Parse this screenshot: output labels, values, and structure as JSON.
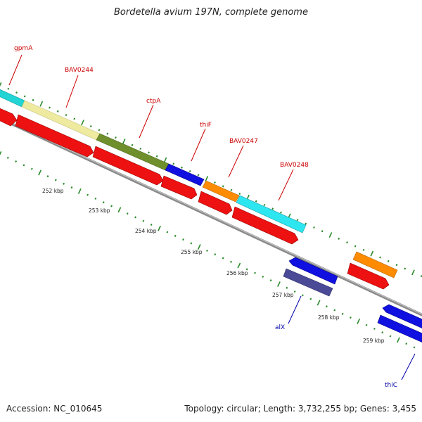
{
  "title": "Bordetella avium 197N, complete genome",
  "footer": {
    "accession": "Accession: NC_010645",
    "summary": "Topology: circular; Length: 3,732,255 bp; Genes: 3,455"
  },
  "colors": {
    "label_red": "#cc0000",
    "label_blue": "#0000aa",
    "backbone": "#888888",
    "gc_green": "#2a8a2a"
  },
  "genes": [
    {
      "name": "gpmA",
      "label_color": "#cc0000"
    },
    {
      "name": "BAV0244",
      "label_color": "#cc0000"
    },
    {
      "name": "ctpA",
      "label_color": "#cc0000"
    },
    {
      "name": "thiF",
      "label_color": "#cc0000"
    },
    {
      "name": "BAV0247",
      "label_color": "#cc0000"
    },
    {
      "name": "BAV0248",
      "label_color": "#cc0000"
    },
    {
      "name": "alX",
      "label_color": "#0000aa"
    },
    {
      "name": "thiC",
      "label_color": "#0000aa"
    }
  ],
  "ticks": [
    "252 kbp",
    "253 kbp",
    "254 kbp",
    "255 kbp",
    "256 kbp",
    "257 kbp",
    "258 kbp",
    "259 kbp"
  ]
}
